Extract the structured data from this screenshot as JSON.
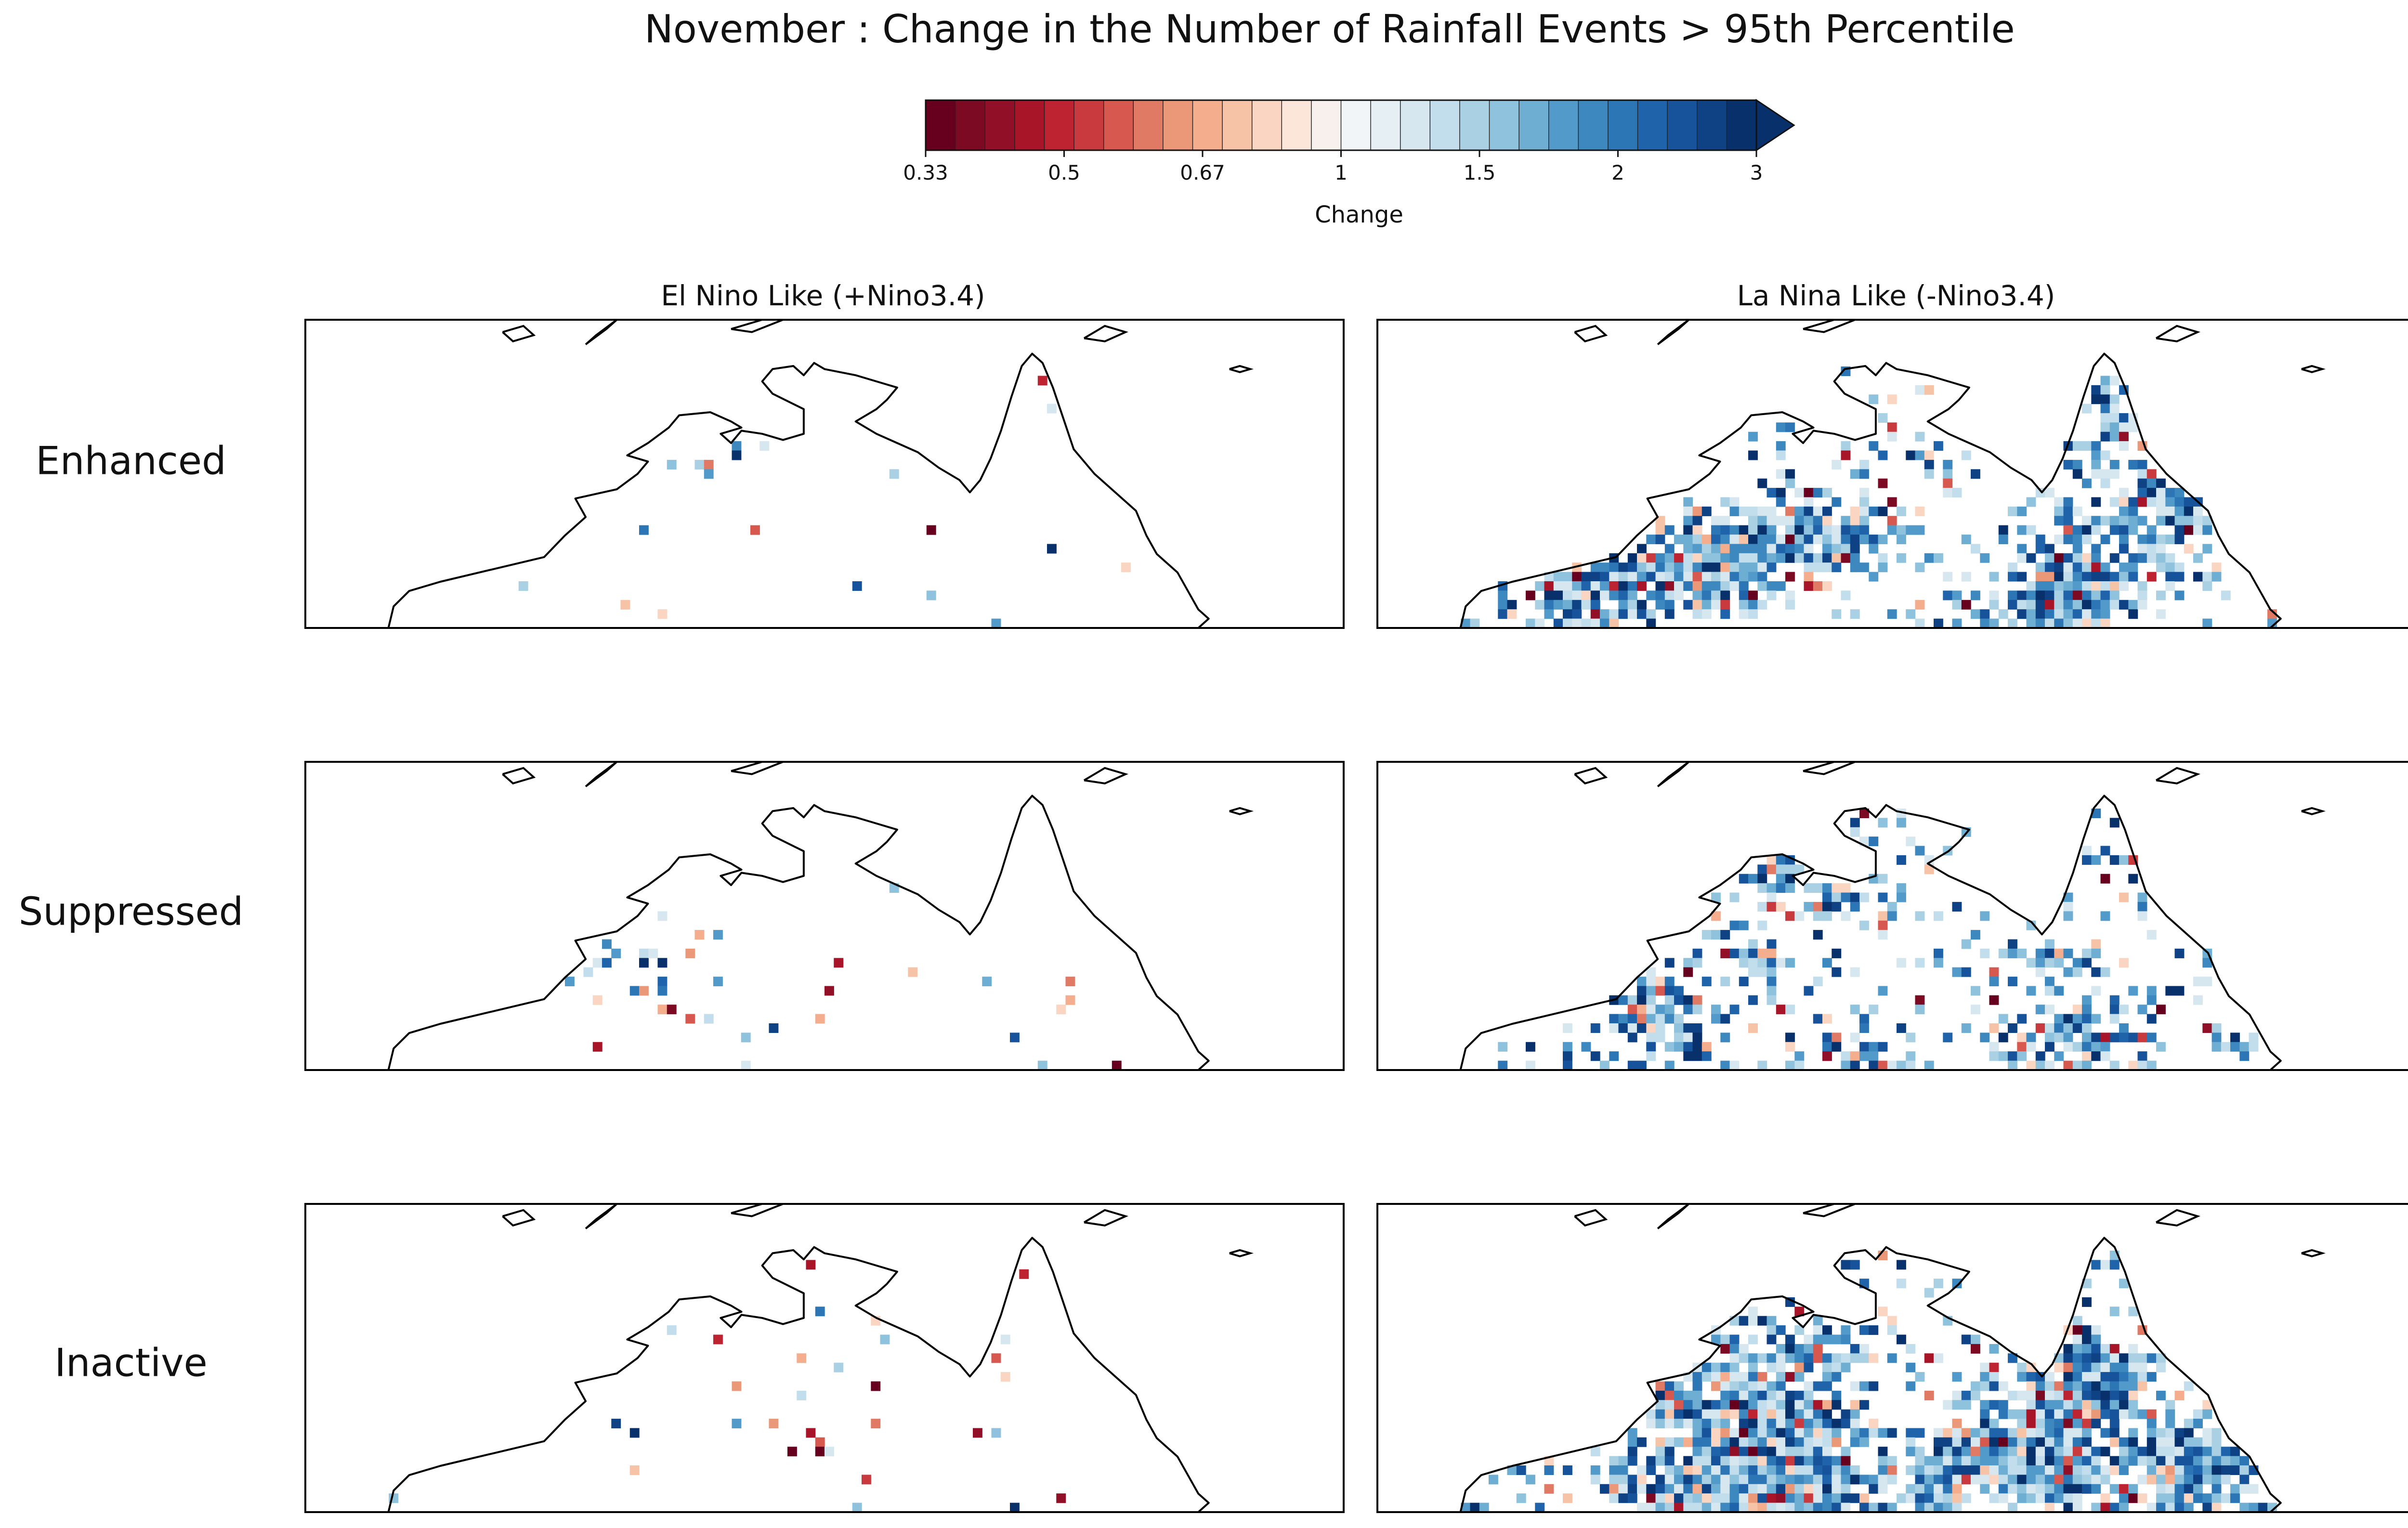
{
  "title": "November : Change in the Number of Rainfall Events > 95th Percentile",
  "colorbar": {
    "label": "Change",
    "ticks": [
      "0.33",
      "0.5",
      "0.67",
      "1",
      "1.5",
      "2",
      "3"
    ],
    "tick_values": [
      0.33,
      0.5,
      0.67,
      1,
      1.5,
      2,
      3
    ],
    "extend": "max",
    "colormap": "RdBu",
    "colors": [
      "#67001f",
      "#7d0a23",
      "#920f28",
      "#a81529",
      "#bd2330",
      "#c93a3e",
      "#d6584f",
      "#e17a64",
      "#ea9878",
      "#f4ad8d",
      "#f7c3a6",
      "#fad5c2",
      "#fce5d9",
      "#f8f0ec",
      "#f2f5f7",
      "#e6eff4",
      "#d6e7f0",
      "#c2ddeb",
      "#aad0e4",
      "#8fc2dd",
      "#6eaed3",
      "#529ac9",
      "#3d88be",
      "#2c76b6",
      "#1f64ab",
      "#16539a",
      "#0f4284",
      "#08306b"
    ]
  },
  "columns": [
    "El Nino Like (+Nino3.4)",
    "La Nina Like (-Nino3.4)"
  ],
  "rows": [
    "Enhanced",
    "Suppressed",
    "Inactive"
  ],
  "chart_data": {
    "type": "heatmap",
    "description_scale": "gridded ratio map; values are change factors (1 = no change)",
    "panels": [
      {
        "row": "Enhanced",
        "column": "El Nino Like (+Nino3.4)",
        "seed": 11,
        "coverage": 0.025,
        "blue_bias": 0.6
      },
      {
        "row": "Enhanced",
        "column": "La Nina Like (-Nino3.4)",
        "seed": 22,
        "coverage": 0.4,
        "blue_bias": 0.85
      },
      {
        "row": "Suppressed",
        "column": "El Nino Like (+Nino3.4)",
        "seed": 33,
        "coverage": 0.04,
        "blue_bias": 0.45
      },
      {
        "row": "Suppressed",
        "column": "La Nina Like (-Nino3.4)",
        "seed": 44,
        "coverage": 0.38,
        "blue_bias": 0.88
      },
      {
        "row": "Inactive",
        "column": "El Nino Like (+Nino3.4)",
        "seed": 55,
        "coverage": 0.05,
        "blue_bias": 0.55
      },
      {
        "row": "Inactive",
        "column": "La Nina Like (-Nino3.4)",
        "seed": 66,
        "coverage": 0.55,
        "blue_bias": 0.85
      }
    ]
  }
}
